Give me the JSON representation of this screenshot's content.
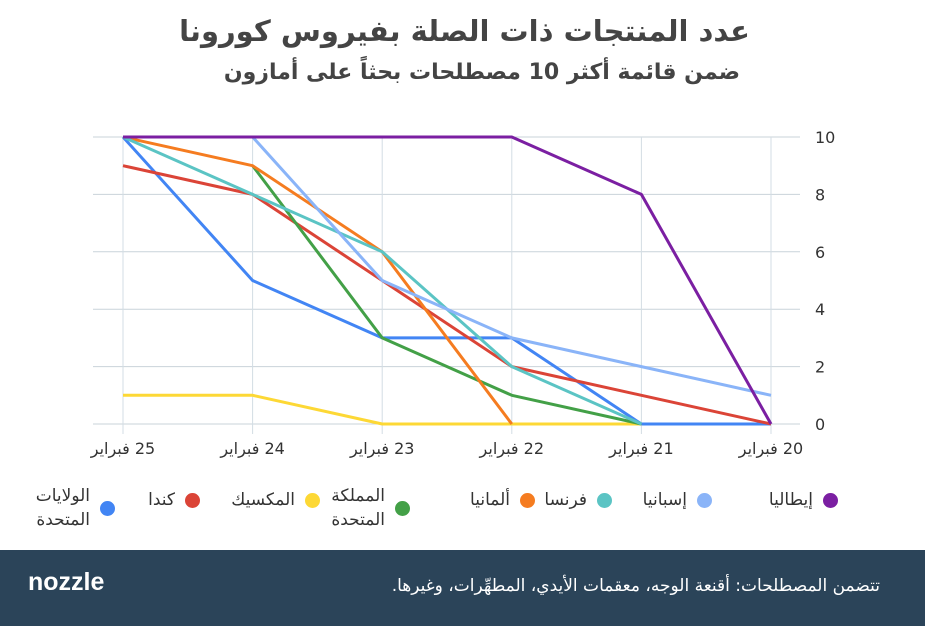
{
  "chart_data": {
    "type": "line",
    "title": "عدد المنتجات ذات الصلة بفيروس كورونا",
    "subtitle": "ضمن قائمة أكثر 10 مصطلحات بحثاً على أمازون",
    "categories": [
      "20 فبراير",
      "21 فبراير",
      "22 فبراير",
      "23 فبراير",
      "24 فبراير",
      "25 فبراير"
    ],
    "x_direction": "right-to-left",
    "ylim": [
      0,
      10
    ],
    "yticks": [
      "0",
      "2",
      "4",
      "6",
      "8",
      "10"
    ],
    "grid": true,
    "legend_position": "bottom",
    "series": [
      {
        "name": "إيطاليا",
        "color": "#7b1fa2",
        "values": [
          0,
          8,
          10,
          10,
          10,
          10
        ]
      },
      {
        "name": "إسبانيا",
        "color": "#8ab4f8",
        "values": [
          1,
          2,
          3,
          5,
          10,
          null
        ]
      },
      {
        "name": "فرنسا",
        "color": "#5bc4c4",
        "values": [
          null,
          0,
          2,
          6,
          8,
          10
        ]
      },
      {
        "name": "ألمانيا",
        "color": "#f57c20",
        "values": [
          null,
          null,
          0,
          6,
          9,
          10
        ]
      },
      {
        "name": "المملكة المتحدة",
        "color": "#43a047",
        "values": [
          null,
          0,
          1,
          3,
          9,
          null
        ]
      },
      {
        "name": "المكسيك",
        "color": "#fdd835",
        "values": [
          null,
          0,
          0,
          0,
          1,
          1
        ]
      },
      {
        "name": "كندا",
        "color": "#db4437",
        "values": [
          0,
          1,
          2,
          5,
          8,
          9
        ]
      },
      {
        "name": "الولايات المتحدة",
        "color": "#4285f4",
        "values": [
          0,
          0,
          3,
          3,
          5,
          10
        ]
      }
    ]
  },
  "footer": {
    "logo": "nozzle",
    "note": "تتضمن المصطلحات: أقنعة الوجه، معقمات الأيدي، المطهِّرات، وغيرها."
  }
}
